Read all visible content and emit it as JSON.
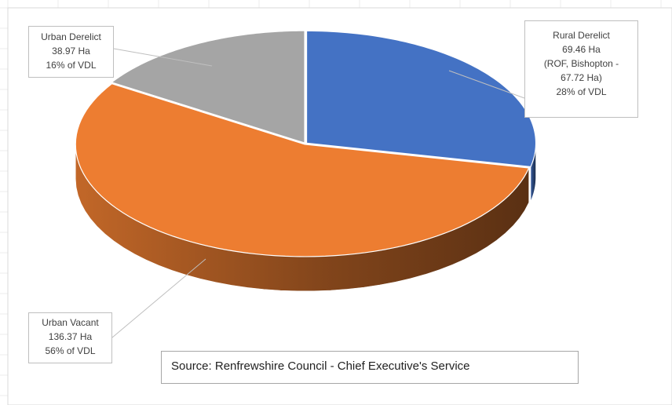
{
  "chart_data": {
    "type": "pie",
    "style": "3d-exploded-perspective",
    "slices": [
      {
        "name": "Rural Derelict",
        "value": 69.46,
        "label_lines": [
          "Rural Derelict",
          "69.46 Ha",
          "(ROF, Bishopton -",
          "67.72 Ha)",
          "28% of VDL"
        ],
        "color": "#4472C4"
      },
      {
        "name": "Urban Vacant",
        "value": 136.37,
        "label_lines": [
          "Urban Vacant",
          "136.37 Ha",
          "56% of VDL"
        ],
        "color": "#ED7D31"
      },
      {
        "name": "Urban Derelict",
        "value": 38.97,
        "label_lines": [
          "Urban Derelict",
          "38.97 Ha",
          "16% of VDL"
        ],
        "color": "#A5A5A5"
      }
    ],
    "unit": "Ha",
    "annotation": "Source: Renfrewshire Council - Chief Executive's Service",
    "legend": "none"
  }
}
